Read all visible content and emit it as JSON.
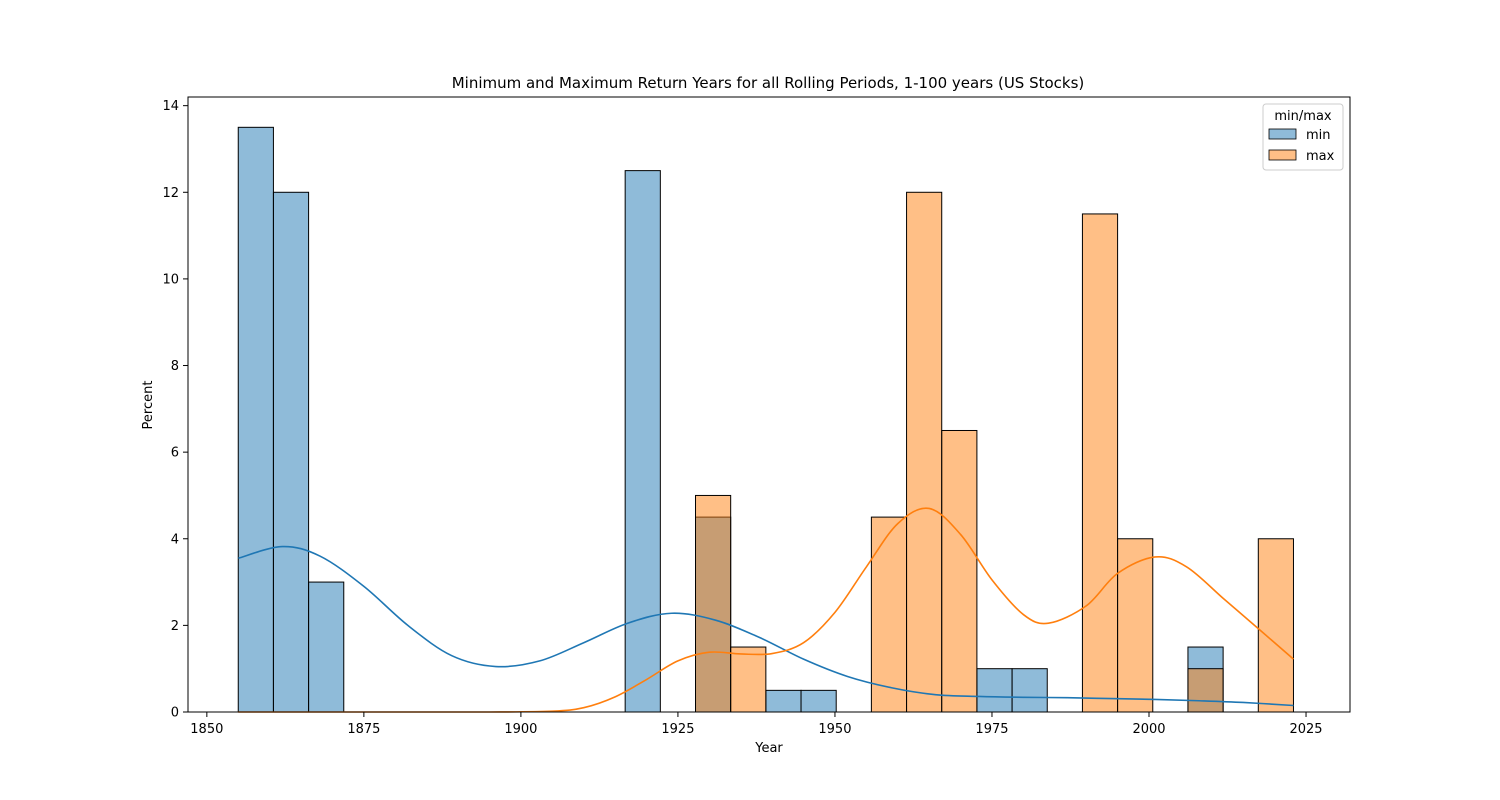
{
  "chart_data": {
    "type": "histogram",
    "title": "Minimum and Maximum Return Years for all Rolling Periods, 1-100 years (US Stocks)",
    "xlabel": "Year",
    "ylabel": "Percent",
    "xlim": [
      1847,
      2032
    ],
    "ylim": [
      0,
      14.2
    ],
    "xticks": [
      1850,
      1875,
      1900,
      1925,
      1950,
      1975,
      2000,
      2025
    ],
    "yticks": [
      0,
      2,
      4,
      6,
      8,
      10,
      12,
      14
    ],
    "bin_start": 1855.0,
    "bin_width": 5.6,
    "legend": {
      "title": "min/max",
      "placement": "upper right"
    },
    "series": [
      {
        "name": "min",
        "color": "#1f77b4",
        "bar_color": "#8fbadb",
        "values": [
          13.5,
          12.0,
          3.0,
          0,
          0,
          0,
          0,
          0,
          0,
          0,
          0,
          12.5,
          0,
          4.5,
          0,
          0.5,
          0.5,
          0,
          0,
          0,
          0,
          1.0,
          1.0,
          0,
          0,
          0,
          0,
          1.5,
          0,
          0
        ],
        "kde": [
          [
            1855,
            3.55
          ],
          [
            1862,
            3.82
          ],
          [
            1868,
            3.6
          ],
          [
            1875,
            2.9
          ],
          [
            1882,
            2.0
          ],
          [
            1889,
            1.3
          ],
          [
            1896,
            1.05
          ],
          [
            1903,
            1.18
          ],
          [
            1910,
            1.6
          ],
          [
            1917,
            2.05
          ],
          [
            1924,
            2.28
          ],
          [
            1931,
            2.12
          ],
          [
            1938,
            1.72
          ],
          [
            1945,
            1.22
          ],
          [
            1952,
            0.82
          ],
          [
            1959,
            0.56
          ],
          [
            1966,
            0.4
          ],
          [
            1973,
            0.36
          ],
          [
            1980,
            0.34
          ],
          [
            1987,
            0.33
          ],
          [
            1994,
            0.31
          ],
          [
            2001,
            0.29
          ],
          [
            2008,
            0.26
          ],
          [
            2015,
            0.22
          ],
          [
            2023,
            0.15
          ]
        ]
      },
      {
        "name": "max",
        "color": "#ff7f0e",
        "bar_color": "#ffbb80",
        "values": [
          0,
          0,
          0,
          0,
          0,
          0,
          0,
          0,
          0,
          0,
          0,
          0,
          0,
          5.0,
          1.5,
          0,
          0,
          0,
          4.5,
          12.0,
          6.5,
          0,
          0,
          0,
          11.5,
          4.0,
          0,
          1.0,
          0,
          4.0
        ],
        "kde": [
          [
            1855,
            0.0
          ],
          [
            1880,
            0.0
          ],
          [
            1895,
            0.0
          ],
          [
            1905,
            0.02
          ],
          [
            1910,
            0.1
          ],
          [
            1915,
            0.35
          ],
          [
            1920,
            0.75
          ],
          [
            1925,
            1.18
          ],
          [
            1930,
            1.38
          ],
          [
            1935,
            1.34
          ],
          [
            1940,
            1.35
          ],
          [
            1945,
            1.6
          ],
          [
            1950,
            2.3
          ],
          [
            1955,
            3.35
          ],
          [
            1960,
            4.35
          ],
          [
            1965,
            4.7
          ],
          [
            1970,
            4.1
          ],
          [
            1975,
            3.05
          ],
          [
            1980,
            2.25
          ],
          [
            1984,
            2.05
          ],
          [
            1990,
            2.45
          ],
          [
            1995,
            3.2
          ],
          [
            2001,
            3.58
          ],
          [
            2006,
            3.35
          ],
          [
            2012,
            2.6
          ],
          [
            2018,
            1.85
          ],
          [
            2023,
            1.22
          ]
        ]
      }
    ]
  }
}
